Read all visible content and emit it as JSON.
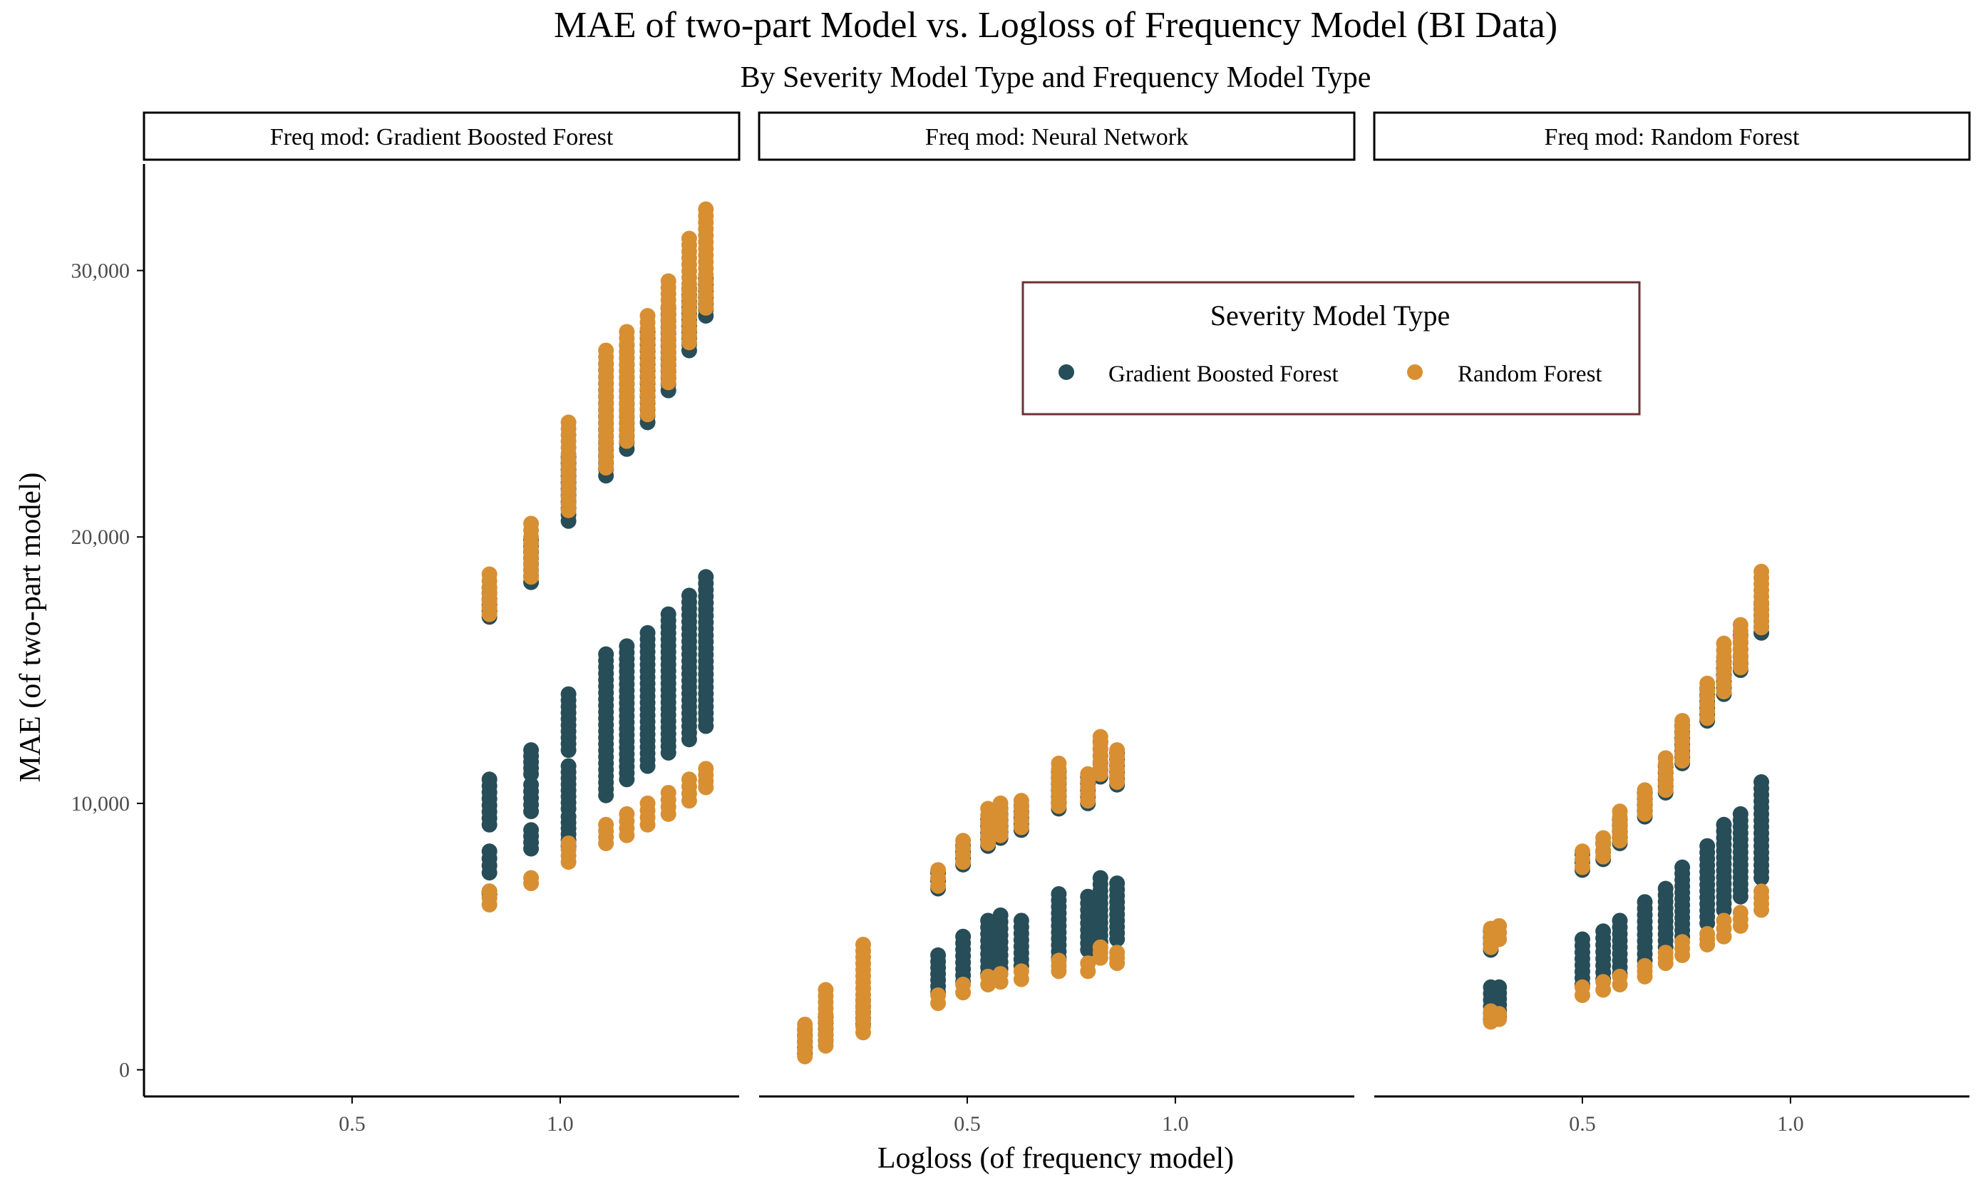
{
  "colors": {
    "gbf": "#274d58",
    "rf": "#d88f32",
    "legend_border": "#6e3136",
    "axis": "#000000",
    "text": "#1a1a1a",
    "tick_text": "#4d4d4d"
  },
  "chart_data": {
    "type": "scatter",
    "title": "MAE of two-part Model vs. Logloss of Frequency Model (BI Data)",
    "subtitle": "By Severity Model Type and Frequency Model Type",
    "xlabel": "Logloss (of frequency model)",
    "ylabel": "MAE (of two-part model)",
    "xlim": [
      0.0,
      1.43
    ],
    "ylim": [
      -1000,
      34000
    ],
    "xticks": [
      0.5,
      1.0
    ],
    "xtick_labels": [
      "0.5",
      "1.0"
    ],
    "yticks": [
      0,
      10000,
      20000,
      30000
    ],
    "ytick_labels": [
      "0",
      "10,000",
      "20,000",
      "30,000"
    ],
    "grid": false,
    "legend": {
      "title": "Severity Model Type",
      "position": "top-right",
      "entries": [
        {
          "key": "gbf",
          "label": "Gradient Boosted Forest"
        },
        {
          "key": "rf",
          "label": "Random Forest"
        }
      ]
    },
    "panels": [
      {
        "strip": "Freq mod: Gradient Boosted Forest",
        "columns": [
          {
            "x": 0.83,
            "gbf": [
              [
                17000,
                18100
              ],
              [
                6600,
                6700
              ],
              [
                7400,
                8200
              ],
              [
                9200,
                10900
              ]
            ],
            "rf": [
              [
                17100,
                18600
              ],
              [
                6200,
                6700
              ]
            ]
          },
          {
            "x": 0.93,
            "gbf": [
              [
                18300,
                19900
              ],
              [
                8300,
                9000
              ],
              [
                9700,
                10700
              ],
              [
                11100,
                12000
              ]
            ],
            "rf": [
              [
                18500,
                20500
              ],
              [
                7000,
                7200
              ]
            ]
          },
          {
            "x": 1.02,
            "gbf": [
              [
                20600,
                23000
              ],
              [
                8400,
                9500
              ],
              [
                9800,
                11400
              ],
              [
                12000,
                14100
              ]
            ],
            "rf": [
              [
                21000,
                24300
              ],
              [
                7800,
                8500
              ]
            ]
          },
          {
            "x": 1.11,
            "gbf": [
              [
                22300,
                26500
              ],
              [
                10300,
                15600
              ]
            ],
            "rf": [
              [
                22600,
                27000
              ],
              [
                8500,
                9200
              ]
            ]
          },
          {
            "x": 1.16,
            "gbf": [
              [
                23300,
                27200
              ],
              [
                10900,
                15900
              ]
            ],
            "rf": [
              [
                23600,
                27700
              ],
              [
                8800,
                9600
              ]
            ]
          },
          {
            "x": 1.21,
            "gbf": [
              [
                24300,
                27700
              ],
              [
                11400,
                16400
              ]
            ],
            "rf": [
              [
                24600,
                28300
              ],
              [
                9200,
                10000
              ]
            ]
          },
          {
            "x": 1.26,
            "gbf": [
              [
                25500,
                28600
              ],
              [
                11900,
                17100
              ]
            ],
            "rf": [
              [
                25800,
                29600
              ],
              [
                9600,
                10400
              ]
            ]
          },
          {
            "x": 1.31,
            "gbf": [
              [
                27000,
                29300
              ],
              [
                12400,
                17800
              ]
            ],
            "rf": [
              [
                27300,
                31200
              ],
              [
                10100,
                10900
              ]
            ]
          },
          {
            "x": 1.35,
            "gbf": [
              [
                28300,
                29700
              ],
              [
                12900,
                18500
              ]
            ],
            "rf": [
              [
                28600,
                32300
              ],
              [
                10600,
                11300
              ]
            ]
          }
        ]
      },
      {
        "strip": "Freq mod: Neural Network",
        "columns": [
          {
            "x": 0.11,
            "gbf": [
              [
                600,
                1500
              ]
            ],
            "rf": [
              [
                500,
                1700
              ]
            ]
          },
          {
            "x": 0.16,
            "gbf": [
              [
                1100,
                2000
              ]
            ],
            "rf": [
              [
                900,
                3000
              ]
            ]
          },
          {
            "x": 0.25,
            "gbf": [
              [
                1700,
                2600
              ]
            ],
            "rf": [
              [
                1400,
                4700
              ]
            ]
          },
          {
            "x": 0.43,
            "gbf": [
              [
                2900,
                4300
              ],
              [
                6800,
                7400
              ]
            ],
            "rf": [
              [
                2500,
                2800
              ],
              [
                6900,
                7500
              ]
            ]
          },
          {
            "x": 0.49,
            "gbf": [
              [
                3300,
                5000
              ],
              [
                7700,
                8400
              ]
            ],
            "rf": [
              [
                2900,
                3200
              ],
              [
                7800,
                8600
              ]
            ]
          },
          {
            "x": 0.55,
            "gbf": [
              [
                3600,
                5600
              ],
              [
                8400,
                9400
              ]
            ],
            "rf": [
              [
                3200,
                3500
              ],
              [
                8500,
                9800
              ]
            ]
          },
          {
            "x": 0.58,
            "gbf": [
              [
                3800,
                5800
              ],
              [
                8700,
                9800
              ]
            ],
            "rf": [
              [
                3300,
                3600
              ],
              [
                8800,
                10000
              ]
            ]
          },
          {
            "x": 0.63,
            "gbf": [
              [
                3900,
                5600
              ],
              [
                9000,
                9900
              ]
            ],
            "rf": [
              [
                3400,
                3700
              ],
              [
                9100,
                10100
              ]
            ]
          },
          {
            "x": 0.72,
            "gbf": [
              [
                4200,
                6600
              ],
              [
                9800,
                11200
              ]
            ],
            "rf": [
              [
                3700,
                4100
              ],
              [
                9900,
                11500
              ]
            ]
          },
          {
            "x": 0.79,
            "gbf": [
              [
                4500,
                6500
              ],
              [
                10000,
                11000
              ]
            ],
            "rf": [
              [
                3700,
                4000
              ],
              [
                10100,
                11100
              ]
            ]
          },
          {
            "x": 0.82,
            "gbf": [
              [
                4800,
                7200
              ],
              [
                11000,
                12300
              ]
            ],
            "rf": [
              [
                4200,
                4600
              ],
              [
                11100,
                12500
              ]
            ]
          },
          {
            "x": 0.86,
            "gbf": [
              [
                4900,
                7000
              ],
              [
                10700,
                11900
              ]
            ],
            "rf": [
              [
                4000,
                4400
              ],
              [
                10800,
                12000
              ]
            ]
          }
        ]
      },
      {
        "strip": "Freq mod: Random Forest",
        "columns": [
          {
            "x": 0.28,
            "gbf": [
              [
                1900,
                3100
              ],
              [
                4500,
                5200
              ]
            ],
            "rf": [
              [
                1800,
                2200
              ],
              [
                4600,
                5300
              ]
            ]
          },
          {
            "x": 0.3,
            "gbf": [
              [
                2000,
                3100
              ]
            ],
            "rf": [
              [
                1900,
                2100
              ],
              [
                4900,
                5400
              ]
            ]
          },
          {
            "x": 0.5,
            "gbf": [
              [
                3200,
                4900
              ],
              [
                7500,
                8100
              ]
            ],
            "rf": [
              [
                2800,
                3100
              ],
              [
                7600,
                8200
              ]
            ]
          },
          {
            "x": 0.55,
            "gbf": [
              [
                3400,
                5200
              ],
              [
                7900,
                8500
              ]
            ],
            "rf": [
              [
                3000,
                3300
              ],
              [
                8000,
                8700
              ]
            ]
          },
          {
            "x": 0.59,
            "gbf": [
              [
                3600,
                5600
              ],
              [
                8500,
                9400
              ]
            ],
            "rf": [
              [
                3200,
                3500
              ],
              [
                8600,
                9700
              ]
            ]
          },
          {
            "x": 0.65,
            "gbf": [
              [
                4100,
                6300
              ],
              [
                9500,
                10400
              ]
            ],
            "rf": [
              [
                3500,
                3900
              ],
              [
                9600,
                10500
              ]
            ]
          },
          {
            "x": 0.7,
            "gbf": [
              [
                4600,
                6800
              ],
              [
                10400,
                11400
              ]
            ],
            "rf": [
              [
                4000,
                4400
              ],
              [
                10500,
                11700
              ]
            ]
          },
          {
            "x": 0.74,
            "gbf": [
              [
                5000,
                7600
              ],
              [
                11500,
                12900
              ]
            ],
            "rf": [
              [
                4300,
                4800
              ],
              [
                11600,
                13100
              ]
            ]
          },
          {
            "x": 0.8,
            "gbf": [
              [
                5500,
                8400
              ],
              [
                13100,
                14300
              ]
            ],
            "rf": [
              [
                4700,
                5100
              ],
              [
                13200,
                14500
              ]
            ]
          },
          {
            "x": 0.84,
            "gbf": [
              [
                6000,
                9200
              ],
              [
                14100,
                15300
              ]
            ],
            "rf": [
              [
                5000,
                5600
              ],
              [
                14200,
                16000
              ]
            ]
          },
          {
            "x": 0.88,
            "gbf": [
              [
                6500,
                9600
              ],
              [
                15000,
                16300
              ]
            ],
            "rf": [
              [
                5400,
                5900
              ],
              [
                15100,
                16700
              ]
            ]
          },
          {
            "x": 0.93,
            "gbf": [
              [
                7200,
                10800
              ],
              [
                16400,
                17500
              ]
            ],
            "rf": [
              [
                6000,
                6700
              ],
              [
                16600,
                18700
              ]
            ]
          }
        ]
      }
    ]
  }
}
